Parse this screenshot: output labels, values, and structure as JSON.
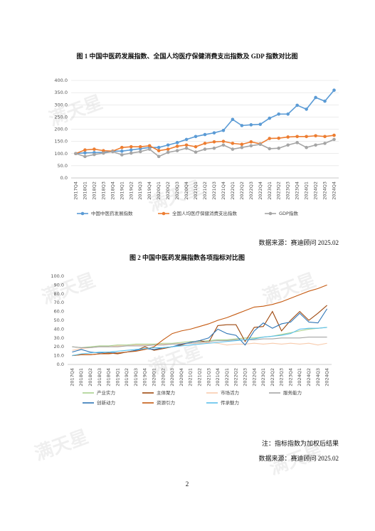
{
  "watermark": "满天星",
  "page_number": "2",
  "chart_data": [
    {
      "type": "line",
      "title": "图 1  中国中医药发展指数、全国人均医疗保健消费支出指数及 GDP 指数对比图",
      "source": "数据来源：赛迪顾问 2025.02",
      "categories": [
        "2017Q4",
        "2018Q1",
        "2018Q2",
        "2018Q3",
        "2018Q4",
        "2019Q1",
        "2019Q2",
        "2019Q3",
        "2019Q4",
        "2020Q1",
        "2020Q2",
        "2020Q3",
        "2020Q4",
        "2021Q1",
        "2021Q2",
        "2021Q3",
        "2021Q4",
        "2022Q1",
        "2022Q2",
        "2022Q3",
        "2022Q4",
        "2023Q1",
        "2023Q2",
        "2023Q3",
        "2023Q4",
        "2024Q1",
        "2024Q2",
        "2024Q3",
        "2024Q4"
      ],
      "ylim": [
        0,
        400
      ],
      "yticks": [
        {
          "value": 0,
          "label": "0.0"
        },
        {
          "value": 50,
          "label": "50.0"
        },
        {
          "value": 100,
          "label": "100.0"
        },
        {
          "value": 150,
          "label": "150.0"
        },
        {
          "value": 200,
          "label": "200.0"
        },
        {
          "value": 250,
          "label": "250.0"
        },
        {
          "value": 300,
          "label": "300.0"
        },
        {
          "value": 350,
          "label": "350.0"
        },
        {
          "value": 400,
          "label": "400.0"
        }
      ],
      "grid": true,
      "markers": true,
      "series": [
        {
          "name": "中国中医药发展指数",
          "color": "#5b9bd5",
          "values": [
            100,
            103,
            104,
            105,
            110,
            110,
            115,
            120,
            125,
            125,
            135,
            145,
            158,
            170,
            178,
            185,
            195,
            240,
            215,
            218,
            220,
            245,
            262,
            262,
            298,
            282,
            330,
            315,
            360
          ]
        },
        {
          "name": "全国人均医疗保健消费支出指数",
          "color": "#ed7d31",
          "values": [
            100,
            115,
            118,
            112,
            110,
            125,
            128,
            128,
            132,
            112,
            118,
            130,
            135,
            128,
            142,
            148,
            150,
            142,
            138,
            148,
            140,
            162,
            163,
            168,
            170,
            170,
            173,
            170,
            175
          ]
        },
        {
          "name": "GDP指数",
          "color": "#a5a5a5",
          "values": [
            100,
            88,
            96,
            102,
            108,
            95,
            102,
            108,
            118,
            88,
            105,
            112,
            122,
            106,
            118,
            122,
            135,
            118,
            125,
            132,
            138,
            120,
            122,
            135,
            145,
            125,
            135,
            142,
            158
          ]
        }
      ]
    },
    {
      "type": "line",
      "title": "图 2  中国中医药发展指数各项指标对比图",
      "note": "注：指标指数为加权后结果",
      "source": "数据来源：赛迪顾问 2025.02",
      "categories": [
        "2017Q4",
        "2018Q1",
        "2018Q2",
        "2018Q3",
        "2018Q4",
        "2019Q1",
        "2019Q2",
        "2019Q3",
        "2019Q4",
        "2020Q1",
        "2020Q2",
        "2020Q3",
        "2020Q4",
        "2021Q1",
        "2021Q2",
        "2021Q3",
        "2021Q4",
        "2022Q1",
        "2022Q2",
        "2022Q3",
        "2022Q4",
        "2023Q1",
        "2023Q2",
        "2023Q3",
        "2023Q4",
        "2024Q1",
        "2024Q2",
        "2024Q3",
        "2024Q4"
      ],
      "ylim": [
        0,
        100
      ],
      "yticks": [
        {
          "value": 0,
          "label": "0.0"
        },
        {
          "value": 10,
          "label": "10.0"
        },
        {
          "value": 20,
          "label": "20.0"
        },
        {
          "value": 30,
          "label": "30.0"
        },
        {
          "value": 40,
          "label": "40.0"
        },
        {
          "value": 50,
          "label": "50.0"
        },
        {
          "value": 60,
          "label": "60.0"
        },
        {
          "value": 70,
          "label": "70.0"
        },
        {
          "value": 80,
          "label": "80.0"
        },
        {
          "value": 90,
          "label": "90.0"
        },
        {
          "value": 100,
          "label": "100.0"
        }
      ],
      "grid": false,
      "markers": false,
      "series": [
        {
          "name": "产业实力",
          "color": "#a9d18e",
          "values": [
            20,
            19,
            20,
            21,
            21,
            22,
            22,
            23,
            23,
            23,
            24,
            24,
            25,
            26,
            26,
            27,
            28,
            28,
            29,
            30,
            30,
            31,
            32,
            34,
            36,
            38,
            40,
            41,
            42
          ]
        },
        {
          "name": "主体聚力",
          "color": "#9e480e",
          "values": [
            10,
            11,
            11,
            12,
            13,
            12,
            14,
            16,
            20,
            16,
            18,
            20,
            22,
            25,
            27,
            25,
            44,
            45,
            45,
            26,
            42,
            43,
            60,
            38,
            50,
            60,
            50,
            58,
            67
          ]
        },
        {
          "name": "市场活力",
          "color": "#f8cbad",
          "values": [
            16,
            18,
            19,
            20,
            20,
            21,
            21,
            22,
            22,
            22,
            23,
            23,
            24,
            24,
            24,
            25,
            24,
            22,
            23,
            23,
            24,
            23,
            24,
            23,
            24,
            23,
            24,
            22,
            24
          ]
        },
        {
          "name": "服务能力",
          "color": "#a5a5a5",
          "values": [
            20,
            19,
            19,
            20,
            20,
            20,
            21,
            21,
            21,
            22,
            22,
            23,
            23,
            24,
            25,
            26,
            27,
            27,
            28,
            28,
            28,
            29,
            29,
            30,
            30,
            30,
            31,
            31,
            31
          ]
        },
        {
          "name": "创新动力",
          "color": "#2e75b6",
          "values": [
            14,
            17,
            14,
            13,
            14,
            13,
            14,
            16,
            18,
            17,
            19,
            20,
            23,
            25,
            27,
            30,
            40,
            35,
            33,
            22,
            38,
            47,
            41,
            46,
            48,
            58,
            48,
            47,
            63
          ]
        },
        {
          "name": "资源引力",
          "color": "#c55a11",
          "values": [
            10,
            11,
            11,
            12,
            12,
            13,
            14,
            15,
            17,
            20,
            28,
            35,
            38,
            40,
            43,
            46,
            50,
            53,
            57,
            61,
            65,
            66,
            68,
            71,
            75,
            79,
            83,
            86,
            90
          ]
        },
        {
          "name": "传承魅力",
          "color": "#5bc0eb",
          "values": [
            10,
            12,
            13,
            14,
            14,
            15,
            16,
            17,
            18,
            19,
            19,
            20,
            21,
            22,
            23,
            24,
            25,
            26,
            27,
            28,
            29,
            31,
            32,
            33,
            35,
            40,
            41,
            41,
            42
          ]
        }
      ]
    }
  ]
}
